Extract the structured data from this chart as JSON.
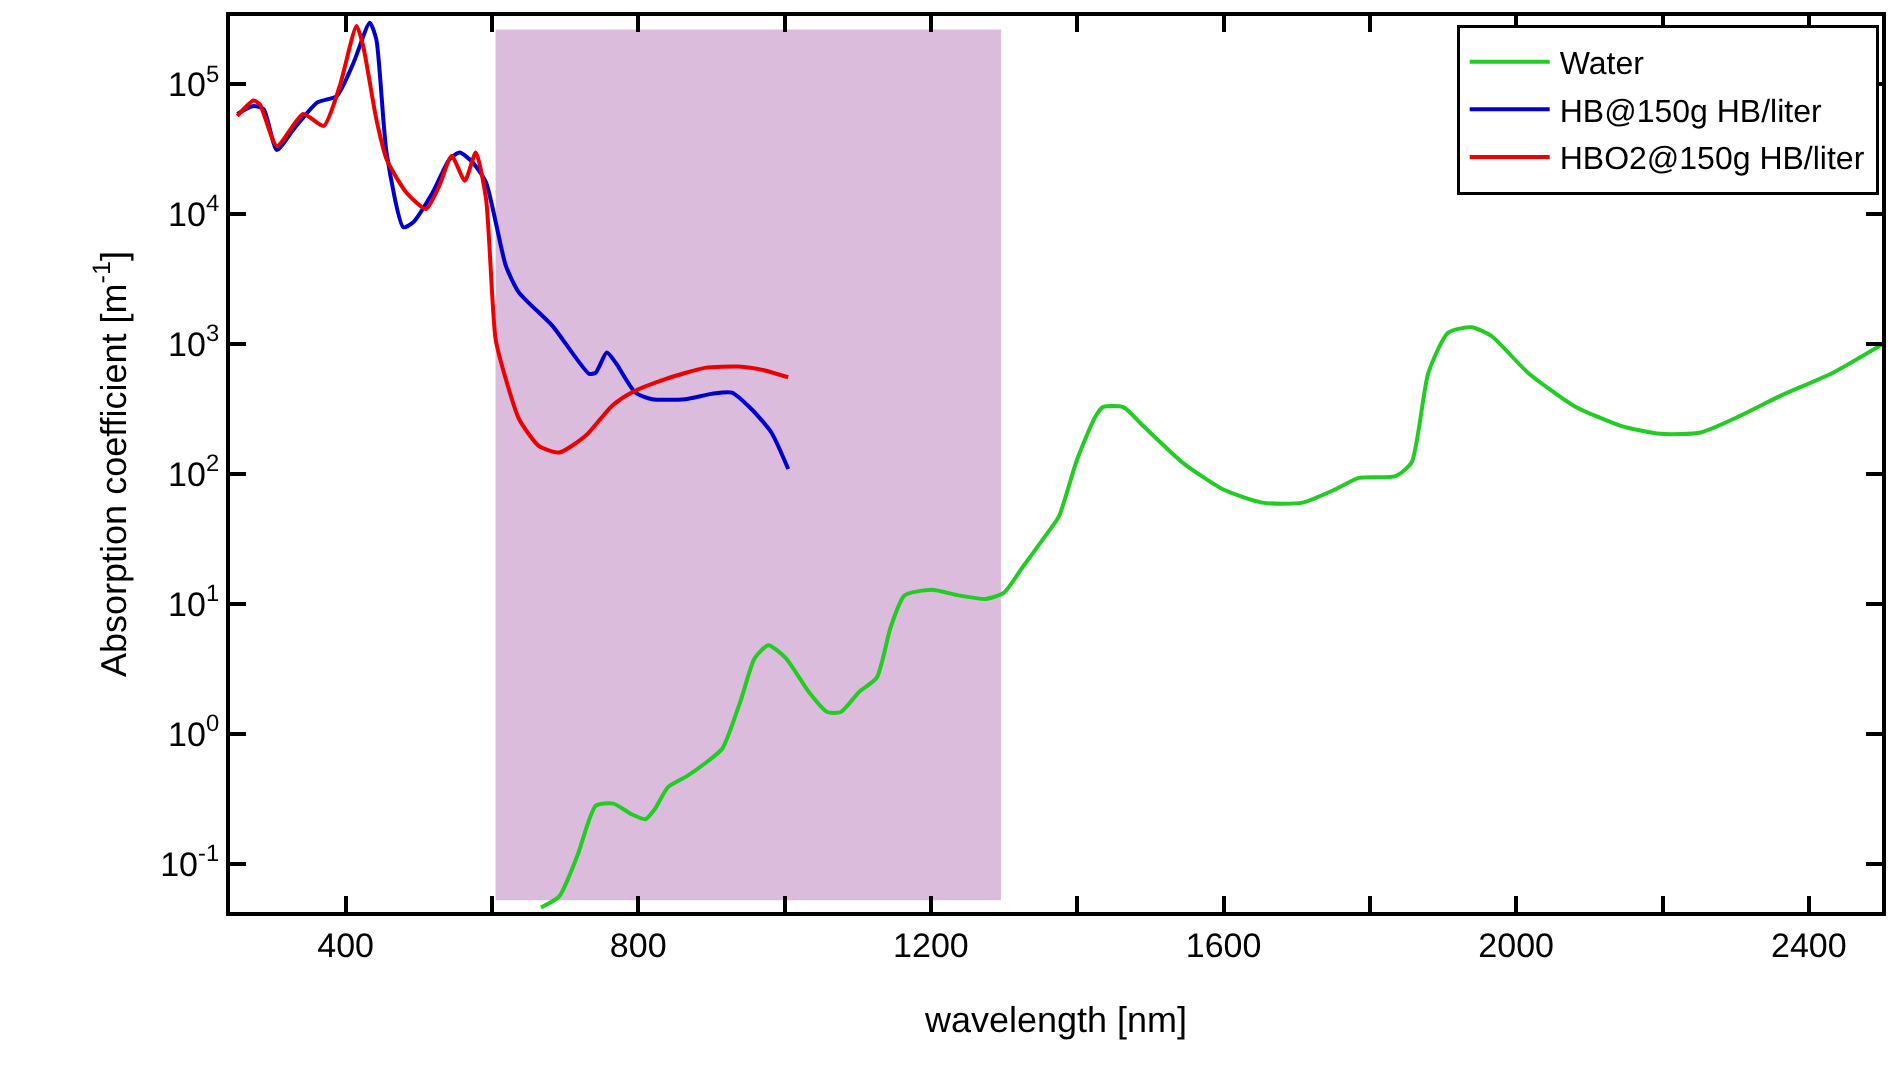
{
  "chart_data": {
    "type": "line",
    "xlabel": "wavelength [nm]",
    "ylabel": "Absorption coefficient [m$^{-1}$]",
    "log": "y",
    "xlim": [
      242,
      2500
    ],
    "xticks": [
      400,
      {
        "value": 600,
        "label": null
      },
      800,
      {
        "value": 1000,
        "label": null
      },
      1200,
      {
        "value": 1400,
        "label": null
      },
      1600,
      {
        "value": 1800,
        "label": null
      },
      2000,
      {
        "value": 2200,
        "label": null
      },
      2400
    ],
    "ylim": [
      0.0425,
      333000
    ],
    "yticks": [
      {
        "value": 0.1,
        "label": "10$^{-1}$"
      },
      {
        "value": 1,
        "label": "10$^{0}$"
      },
      {
        "value": 10,
        "label": "10$^{1}$"
      },
      {
        "value": 100,
        "label": "10$^{2}$"
      },
      {
        "value": 1000,
        "label": "10$^{3}$"
      },
      {
        "value": 10000,
        "label": "10$^{4}$"
      },
      {
        "value": 100000,
        "label": "10$^{5}$"
      }
    ],
    "grid": false,
    "legend": "top right",
    "line_style": "solid",
    "bands": [
      {
        "axis": "x",
        "from": 605,
        "to": 1296,
        "color": "#dcbcdc"
      }
    ],
    "series": [
      {
        "name": "Water",
        "color": "#22cc22",
        "x": [
          667,
          692,
          717,
          742,
          766,
          791,
          810,
          822,
          841,
          866,
          891,
          915,
          940,
          959,
          978,
          1002,
          1033,
          1058,
          1077,
          1102,
          1126,
          1145,
          1164,
          1201,
          1238,
          1275,
          1300,
          1325,
          1356,
          1375,
          1399,
          1424,
          1435,
          1463,
          1490,
          1544,
          1599,
          1653,
          1708,
          1753,
          1785,
          1835,
          1857,
          1880,
          1907,
          1939,
          1966,
          2016,
          2079,
          2143,
          2197,
          2252,
          2306,
          2361,
          2433,
          2500
        ],
        "values": [
          0.046,
          0.056,
          0.116,
          0.28,
          0.29,
          0.24,
          0.22,
          0.26,
          0.39,
          0.47,
          0.59,
          0.77,
          1.8,
          3.8,
          4.8,
          3.8,
          2.1,
          1.47,
          1.47,
          2.1,
          2.7,
          6.6,
          11.6,
          12.8,
          11.6,
          10.9,
          12.2,
          19,
          33,
          47,
          125,
          270,
          326,
          326,
          234,
          122,
          76,
          60,
          60,
          76,
          93,
          96,
          122,
          600,
          1220,
          1340,
          1150,
          600,
          333,
          234,
          203,
          208,
          279,
          398,
          600,
          990
        ]
      },
      {
        "name": "HB@150g HB/liter",
        "color": "#0000cc",
        "x": [
          252,
          274,
          288,
          306,
          329,
          361,
          388,
          411,
          433,
          442,
          456,
          479,
          492,
          519,
          542,
          556,
          574,
          592,
          619,
          637,
          683,
          733,
          742,
          757,
          769,
          796,
          819,
          864,
          900,
          928,
          955,
          982,
          1005
        ],
        "values": [
          58700,
          67600,
          63800,
          31000,
          44800,
          71800,
          80700,
          146000,
          296000,
          220000,
          29600,
          7890,
          8570,
          14600,
          26300,
          29600,
          24800,
          17400,
          3990,
          2480,
          1370,
          587,
          601,
          857,
          718,
          422,
          375,
          375,
          412,
          422,
          314,
          208,
          109
        ]
      },
      {
        "name": "HBO2@150g HB/liter",
        "color": "#ee0000",
        "x": [
          252,
          274,
          283,
          306,
          342,
          370,
          392,
          415,
          424,
          442,
          456,
          483,
          510,
          528,
          545,
          563,
          578,
          592,
          605,
          619,
          637,
          664,
          692,
          728,
          764,
          791,
          837,
          891,
          937,
          973,
          1005
        ],
        "values": [
          56700,
          74500,
          69300,
          33300,
          58700,
          47500,
          96400,
          279000,
          196000,
          53500,
          26300,
          14600,
          10900,
          16400,
          27900,
          18000,
          29600,
          13000,
          1090,
          535,
          264,
          164,
          146,
          196,
          333,
          422,
          535,
          653,
          668,
          624,
          553
        ]
      }
    ]
  }
}
